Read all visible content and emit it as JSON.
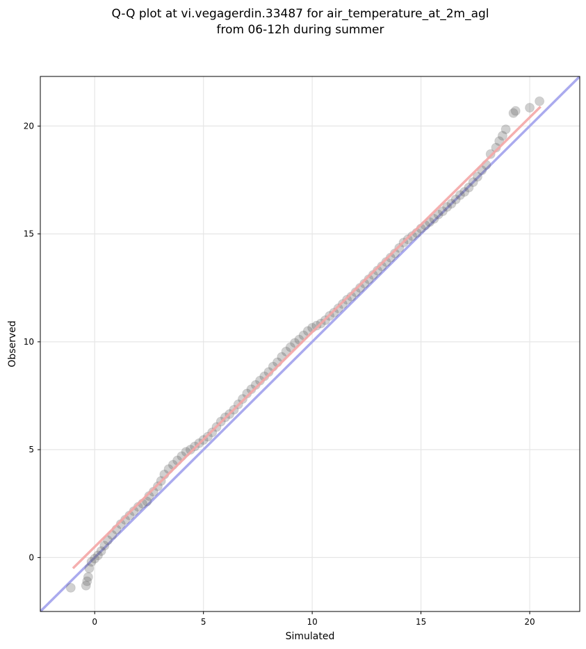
{
  "chart_data": {
    "type": "scatter",
    "title_lines": [
      "Q-Q plot at vi.vegagerdin.33487 for air_temperature_at_2m_agl",
      "from 06-12h during summer"
    ],
    "xlabel": "Simulated",
    "ylabel": "Observed",
    "xlim": [
      -2.5,
      22.3
    ],
    "ylim": [
      -2.5,
      22.3
    ],
    "xticks": [
      0,
      5,
      10,
      15,
      20
    ],
    "yticks": [
      0,
      5,
      10,
      15,
      20
    ],
    "grid": true,
    "colors": {
      "points": "#555555",
      "identity_line": "#aaaaee",
      "fit_line": "#f4a6a6",
      "grid": "#e6e6e6"
    },
    "reference_line": {
      "name": "y = x",
      "from": [
        -2.5,
        -2.5
      ],
      "to": [
        22.3,
        22.3
      ]
    },
    "fit_line": {
      "from": [
        -1.0,
        -0.5
      ],
      "to": [
        20.5,
        20.9
      ]
    },
    "quantiles": [
      [
        -1.1,
        -1.4
      ],
      [
        -0.4,
        -1.3
      ],
      [
        -0.35,
        -1.1
      ],
      [
        -0.3,
        -0.9
      ],
      [
        -0.25,
        -0.5
      ],
      [
        -0.15,
        -0.2
      ],
      [
        0.0,
        -0.05
      ],
      [
        0.15,
        0.1
      ],
      [
        0.3,
        0.3
      ],
      [
        0.45,
        0.55
      ],
      [
        0.6,
        0.8
      ],
      [
        0.8,
        1.05
      ],
      [
        1.0,
        1.3
      ],
      [
        1.2,
        1.55
      ],
      [
        1.4,
        1.75
      ],
      [
        1.6,
        1.95
      ],
      [
        1.8,
        2.15
      ],
      [
        2.0,
        2.35
      ],
      [
        2.2,
        2.5
      ],
      [
        2.4,
        2.6
      ],
      [
        2.5,
        2.85
      ],
      [
        2.7,
        3.05
      ],
      [
        2.9,
        3.3
      ],
      [
        3.05,
        3.55
      ],
      [
        3.2,
        3.85
      ],
      [
        3.4,
        4.1
      ],
      [
        3.6,
        4.3
      ],
      [
        3.8,
        4.5
      ],
      [
        4.0,
        4.7
      ],
      [
        4.2,
        4.9
      ],
      [
        4.4,
        5.0
      ],
      [
        4.6,
        5.15
      ],
      [
        4.8,
        5.3
      ],
      [
        5.0,
        5.45
      ],
      [
        5.2,
        5.6
      ],
      [
        5.4,
        5.8
      ],
      [
        5.6,
        6.05
      ],
      [
        5.8,
        6.3
      ],
      [
        6.0,
        6.5
      ],
      [
        6.2,
        6.65
      ],
      [
        6.4,
        6.85
      ],
      [
        6.6,
        7.1
      ],
      [
        6.8,
        7.35
      ],
      [
        7.0,
        7.6
      ],
      [
        7.2,
        7.8
      ],
      [
        7.4,
        8.0
      ],
      [
        7.6,
        8.2
      ],
      [
        7.8,
        8.4
      ],
      [
        8.0,
        8.6
      ],
      [
        8.2,
        8.85
      ],
      [
        8.4,
        9.05
      ],
      [
        8.6,
        9.3
      ],
      [
        8.8,
        9.55
      ],
      [
        9.0,
        9.75
      ],
      [
        9.2,
        9.95
      ],
      [
        9.4,
        10.1
      ],
      [
        9.6,
        10.3
      ],
      [
        9.8,
        10.5
      ],
      [
        10.0,
        10.65
      ],
      [
        10.2,
        10.75
      ],
      [
        10.4,
        10.85
      ],
      [
        10.6,
        11.0
      ],
      [
        10.8,
        11.2
      ],
      [
        11.0,
        11.35
      ],
      [
        11.2,
        11.55
      ],
      [
        11.4,
        11.75
      ],
      [
        11.6,
        11.95
      ],
      [
        11.8,
        12.1
      ],
      [
        12.0,
        12.3
      ],
      [
        12.2,
        12.5
      ],
      [
        12.4,
        12.7
      ],
      [
        12.6,
        12.9
      ],
      [
        12.8,
        13.1
      ],
      [
        13.0,
        13.3
      ],
      [
        13.2,
        13.5
      ],
      [
        13.4,
        13.7
      ],
      [
        13.6,
        13.9
      ],
      [
        13.8,
        14.1
      ],
      [
        14.0,
        14.35
      ],
      [
        14.2,
        14.6
      ],
      [
        14.4,
        14.75
      ],
      [
        14.6,
        14.9
      ],
      [
        14.8,
        15.05
      ],
      [
        15.0,
        15.25
      ],
      [
        15.2,
        15.4
      ],
      [
        15.4,
        15.55
      ],
      [
        15.6,
        15.7
      ],
      [
        15.8,
        15.9
      ],
      [
        16.0,
        16.05
      ],
      [
        16.2,
        16.25
      ],
      [
        16.4,
        16.4
      ],
      [
        16.6,
        16.6
      ],
      [
        16.8,
        16.8
      ],
      [
        17.0,
        16.95
      ],
      [
        17.2,
        17.15
      ],
      [
        17.4,
        17.4
      ],
      [
        17.6,
        17.65
      ],
      [
        17.8,
        17.95
      ],
      [
        18.0,
        18.2
      ],
      [
        18.2,
        18.7
      ],
      [
        18.45,
        19.0
      ],
      [
        18.6,
        19.3
      ],
      [
        18.75,
        19.55
      ],
      [
        18.9,
        19.85
      ],
      [
        19.25,
        20.6
      ],
      [
        19.35,
        20.7
      ],
      [
        20.0,
        20.85
      ],
      [
        20.45,
        21.15
      ]
    ]
  }
}
